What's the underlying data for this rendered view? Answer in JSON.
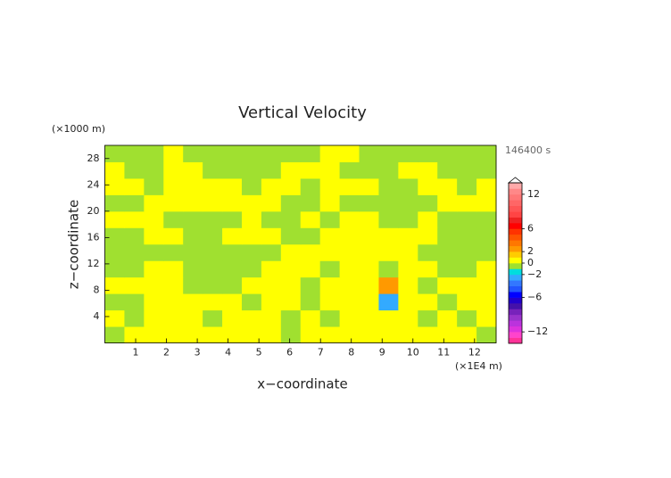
{
  "chart_data": {
    "type": "contour",
    "title": "Vertical Velocity",
    "y_unit_label": "(×1000 m)",
    "x_unit_label": "(×1E4 m)",
    "time_label": "146400 s",
    "xlabel": "x−coordinate",
    "ylabel": "z−coordinate",
    "xlim": [
      0,
      12.7
    ],
    "ylim": [
      0,
      30
    ],
    "xticks": [
      1,
      2,
      3,
      4,
      5,
      6,
      7,
      8,
      9,
      10,
      11,
      12
    ],
    "yticks": [
      4,
      8,
      12,
      16,
      20,
      24,
      28
    ],
    "z": [
      [
        -0.5,
        0.5,
        0.5,
        0.5,
        0.5,
        0.5,
        0.5,
        0.5,
        0.5,
        -0.5,
        0.5,
        0.5,
        0.5,
        0.5,
        0.5,
        0.5,
        0.5,
        0.5,
        0.5,
        -0.5
      ],
      [
        0.5,
        -0.5,
        0.5,
        0.5,
        0.5,
        -0.5,
        0.5,
        0.5,
        0.5,
        -0.5,
        0.5,
        -0.5,
        0.5,
        0.5,
        0.5,
        0.5,
        -0.5,
        0.5,
        -0.5,
        0.5
      ],
      [
        -0.5,
        -0.5,
        0.5,
        0.5,
        0.5,
        0.5,
        0.5,
        -0.5,
        0.5,
        0.5,
        -0.5,
        0.5,
        0.5,
        0.5,
        -2.5,
        0.5,
        0.5,
        -0.5,
        0.5,
        0.5
      ],
      [
        0.5,
        0.5,
        0.5,
        0.5,
        -0.5,
        -0.5,
        -0.5,
        0.5,
        0.5,
        0.5,
        -0.5,
        0.5,
        0.5,
        0.5,
        2.5,
        0.5,
        -0.5,
        0.5,
        0.5,
        0.5
      ],
      [
        -0.5,
        -0.5,
        0.5,
        0.5,
        -0.5,
        -0.5,
        -0.5,
        -0.5,
        0.5,
        0.5,
        0.5,
        -0.5,
        0.5,
        0.5,
        -0.5,
        0.5,
        0.5,
        -0.5,
        -0.5,
        0.5
      ],
      [
        -0.5,
        -0.5,
        -0.5,
        -0.5,
        -0.5,
        -0.5,
        -0.5,
        -0.5,
        -0.5,
        0.5,
        0.5,
        0.5,
        0.5,
        0.5,
        0.5,
        0.5,
        -0.5,
        -0.5,
        -0.5,
        -0.5
      ],
      [
        -0.5,
        -0.5,
        0.5,
        0.5,
        -0.5,
        -0.5,
        0.5,
        0.5,
        0.5,
        -0.5,
        -0.5,
        0.5,
        0.5,
        0.5,
        0.5,
        0.5,
        0.5,
        -0.5,
        -0.5,
        -0.5
      ],
      [
        0.5,
        0.5,
        0.5,
        -0.5,
        -0.5,
        -0.5,
        -0.5,
        0.5,
        -0.5,
        -0.5,
        0.5,
        -0.5,
        0.5,
        0.5,
        -0.5,
        -0.5,
        0.5,
        -0.5,
        -0.5,
        -0.5
      ],
      [
        -0.5,
        -0.5,
        0.5,
        0.5,
        0.5,
        0.5,
        0.5,
        0.5,
        0.5,
        -0.5,
        -0.5,
        0.5,
        -0.5,
        -0.5,
        -0.5,
        -0.5,
        -0.5,
        0.5,
        0.5,
        0.5
      ],
      [
        0.5,
        0.5,
        -0.5,
        0.5,
        0.5,
        0.5,
        0.5,
        -0.5,
        0.5,
        0.5,
        -0.5,
        0.5,
        0.5,
        0.5,
        -0.5,
        -0.5,
        0.5,
        0.5,
        -0.5,
        0.5
      ],
      [
        0.5,
        -0.5,
        -0.5,
        0.5,
        0.5,
        -0.5,
        -0.5,
        -0.5,
        -0.5,
        0.5,
        0.5,
        0.5,
        -0.5,
        -0.5,
        -0.5,
        0.5,
        0.5,
        -0.5,
        -0.5,
        -0.5
      ],
      [
        -0.5,
        -0.5,
        -0.5,
        0.5,
        -0.5,
        -0.5,
        -0.5,
        -0.5,
        -0.5,
        -0.5,
        -0.5,
        0.5,
        0.5,
        -0.5,
        -0.5,
        -0.5,
        -0.5,
        -0.5,
        -0.5,
        -0.5
      ]
    ],
    "colorbar": {
      "lim": [
        -14,
        14
      ],
      "colors": [
        "#ff3399",
        "#ff44cc",
        "#dd33dd",
        "#bb33dd",
        "#9933cc",
        "#7722bb",
        "#4411aa",
        "#2200cc",
        "#0000ff",
        "#2255ff",
        "#3377ff",
        "#33aaff",
        "#00dddd",
        "#a0e030",
        "#ffff00",
        "#ffcc00",
        "#ff9900",
        "#ff7700",
        "#ff5500",
        "#ff3300",
        "#ff0000",
        "#ee2222",
        "#ff4444",
        "#ff5555",
        "#ff6666",
        "#ff7777",
        "#ff8888",
        "#ffaaaa"
      ],
      "ticks": [
        {
          "value": -12,
          "label": "−12"
        },
        {
          "value": -6,
          "label": "−6"
        },
        {
          "value": -2,
          "label": "−2"
        },
        0,
        2,
        6,
        12
      ]
    }
  }
}
